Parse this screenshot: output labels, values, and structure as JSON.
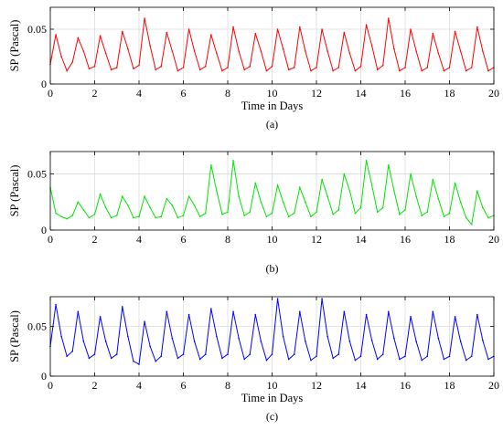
{
  "chart_data": [
    {
      "type": "line",
      "caption": "(a)",
      "xlabel": "Time in Days",
      "ylabel": "SP (Pascal)",
      "xlim": [
        0,
        20
      ],
      "ylim": [
        0,
        0.07
      ],
      "xticks": [
        0,
        2,
        4,
        6,
        8,
        10,
        12,
        14,
        16,
        18,
        20
      ],
      "xtick_labels": [
        "0",
        "2",
        "4",
        "6",
        "8",
        "10",
        "12",
        "14",
        "16",
        "18",
        "20"
      ],
      "yticks": [
        0,
        0.05
      ],
      "ytick_labels": [
        "0",
        "0.05"
      ],
      "grid": true,
      "color": "#ff0000",
      "series": [
        {
          "x": [
            0,
            0.25,
            0.5,
            0.75,
            1,
            1.25,
            1.5,
            1.75,
            2,
            2.25,
            2.5,
            2.75,
            3,
            3.25,
            3.5,
            3.75,
            4,
            4.25,
            4.5,
            4.75,
            5,
            5.25,
            5.5,
            5.75,
            6,
            6.25,
            6.5,
            6.75,
            7,
            7.25,
            7.5,
            7.75,
            8,
            8.25,
            8.5,
            8.75,
            9,
            9.25,
            9.5,
            9.75,
            10,
            10.25,
            10.5,
            10.75,
            11,
            11.25,
            11.5,
            11.75,
            12,
            12.25,
            12.5,
            12.75,
            13,
            13.25,
            13.5,
            13.75,
            14,
            14.25,
            14.5,
            14.75,
            15,
            15.25,
            15.5,
            15.75,
            16,
            16.25,
            16.5,
            16.75,
            17,
            17.25,
            17.5,
            17.75,
            18,
            18.25,
            18.5,
            18.75,
            19,
            19.25,
            19.5,
            19.75,
            20
          ],
          "values": [
            0.018,
            0.045,
            0.025,
            0.012,
            0.02,
            0.042,
            0.03,
            0.014,
            0.016,
            0.044,
            0.028,
            0.013,
            0.015,
            0.048,
            0.032,
            0.014,
            0.017,
            0.06,
            0.035,
            0.013,
            0.016,
            0.047,
            0.03,
            0.012,
            0.015,
            0.05,
            0.03,
            0.013,
            0.016,
            0.045,
            0.028,
            0.012,
            0.015,
            0.052,
            0.03,
            0.013,
            0.016,
            0.046,
            0.03,
            0.012,
            0.016,
            0.05,
            0.032,
            0.013,
            0.015,
            0.052,
            0.03,
            0.012,
            0.015,
            0.05,
            0.03,
            0.012,
            0.015,
            0.047,
            0.028,
            0.012,
            0.016,
            0.054,
            0.035,
            0.013,
            0.017,
            0.06,
            0.032,
            0.012,
            0.015,
            0.05,
            0.03,
            0.012,
            0.015,
            0.046,
            0.028,
            0.012,
            0.015,
            0.048,
            0.03,
            0.012,
            0.015,
            0.052,
            0.03,
            0.012,
            0.015
          ]
        }
      ]
    },
    {
      "type": "line",
      "caption": "(b)",
      "xlabel": "",
      "ylabel": "SP (Pascal)",
      "xlim": [
        0,
        20
      ],
      "ylim": [
        0,
        0.07
      ],
      "xticks": [
        0,
        2,
        4,
        6,
        8,
        10,
        12,
        14,
        16,
        18,
        20
      ],
      "xtick_labels": [
        "0",
        "2",
        "4",
        "6",
        "8",
        "10",
        "12",
        "14",
        "16",
        "18",
        "20"
      ],
      "yticks": [
        0,
        0.05
      ],
      "ytick_labels": [
        "0",
        "0.05"
      ],
      "grid": true,
      "color": "#00e600",
      "series": [
        {
          "x": [
            0,
            0.25,
            0.5,
            0.75,
            1,
            1.25,
            1.5,
            1.75,
            2,
            2.25,
            2.5,
            2.75,
            3,
            3.25,
            3.5,
            3.75,
            4,
            4.25,
            4.5,
            4.75,
            5,
            5.25,
            5.5,
            5.75,
            6,
            6.25,
            6.5,
            6.75,
            7,
            7.25,
            7.5,
            7.75,
            8,
            8.25,
            8.5,
            8.75,
            9,
            9.25,
            9.5,
            9.75,
            10,
            10.25,
            10.5,
            10.75,
            11,
            11.25,
            11.5,
            11.75,
            12,
            12.25,
            12.5,
            12.75,
            13,
            13.25,
            13.5,
            13.75,
            14,
            14.25,
            14.5,
            14.75,
            15,
            15.25,
            15.5,
            15.75,
            16,
            16.25,
            16.5,
            16.75,
            17,
            17.25,
            17.5,
            17.75,
            18,
            18.25,
            18.5,
            18.75,
            19,
            19.25,
            19.5,
            19.75,
            20
          ],
          "values": [
            0.038,
            0.015,
            0.012,
            0.01,
            0.013,
            0.025,
            0.018,
            0.011,
            0.014,
            0.032,
            0.02,
            0.011,
            0.013,
            0.03,
            0.022,
            0.011,
            0.012,
            0.03,
            0.02,
            0.011,
            0.012,
            0.028,
            0.022,
            0.011,
            0.013,
            0.03,
            0.022,
            0.012,
            0.015,
            0.058,
            0.035,
            0.014,
            0.016,
            0.062,
            0.03,
            0.013,
            0.016,
            0.042,
            0.025,
            0.012,
            0.015,
            0.04,
            0.025,
            0.012,
            0.015,
            0.038,
            0.025,
            0.012,
            0.016,
            0.045,
            0.03,
            0.014,
            0.018,
            0.05,
            0.035,
            0.015,
            0.02,
            0.062,
            0.04,
            0.016,
            0.02,
            0.058,
            0.035,
            0.014,
            0.018,
            0.05,
            0.03,
            0.013,
            0.016,
            0.045,
            0.028,
            0.012,
            0.015,
            0.042,
            0.025,
            0.011,
            0.005,
            0.035,
            0.02,
            0.011,
            0.013
          ]
        }
      ]
    },
    {
      "type": "line",
      "caption": "(c)",
      "xlabel": "Time in Days",
      "ylabel": "SP (Pascal)",
      "xlim": [
        0,
        20
      ],
      "ylim": [
        0,
        0.08
      ],
      "xticks": [
        0,
        2,
        4,
        6,
        8,
        10,
        12,
        14,
        16,
        18,
        20
      ],
      "xtick_labels": [
        "0",
        "2",
        "4",
        "6",
        "8",
        "10",
        "12",
        "14",
        "16",
        "18",
        "20"
      ],
      "yticks": [
        0,
        0.05
      ],
      "ytick_labels": [
        "0",
        "0.05"
      ],
      "grid": true,
      "color": "#0000ff",
      "series": [
        {
          "x": [
            0,
            0.25,
            0.5,
            0.75,
            1,
            1.25,
            1.5,
            1.75,
            2,
            2.25,
            2.5,
            2.75,
            3,
            3.25,
            3.5,
            3.75,
            4,
            4.25,
            4.5,
            4.75,
            5,
            5.25,
            5.5,
            5.75,
            6,
            6.25,
            6.5,
            6.75,
            7,
            7.25,
            7.5,
            7.75,
            8,
            8.25,
            8.5,
            8.75,
            9,
            9.25,
            9.5,
            9.75,
            10,
            10.25,
            10.5,
            10.75,
            11,
            11.25,
            11.5,
            11.75,
            12,
            12.25,
            12.5,
            12.75,
            13,
            13.25,
            13.5,
            13.75,
            14,
            14.25,
            14.5,
            14.75,
            15,
            15.25,
            15.5,
            15.75,
            16,
            16.25,
            16.5,
            16.75,
            17,
            17.25,
            17.5,
            17.75,
            18,
            18.25,
            18.5,
            18.75,
            19,
            19.25,
            19.5,
            19.75,
            20
          ],
          "values": [
            0.03,
            0.072,
            0.04,
            0.02,
            0.025,
            0.065,
            0.035,
            0.018,
            0.022,
            0.06,
            0.035,
            0.018,
            0.022,
            0.07,
            0.04,
            0.015,
            0.012,
            0.055,
            0.03,
            0.015,
            0.02,
            0.065,
            0.038,
            0.018,
            0.022,
            0.062,
            0.035,
            0.017,
            0.022,
            0.068,
            0.04,
            0.018,
            0.022,
            0.065,
            0.038,
            0.017,
            0.022,
            0.062,
            0.035,
            0.016,
            0.022,
            0.078,
            0.04,
            0.017,
            0.022,
            0.065,
            0.035,
            0.016,
            0.02,
            0.078,
            0.04,
            0.018,
            0.022,
            0.065,
            0.035,
            0.016,
            0.02,
            0.062,
            0.036,
            0.017,
            0.022,
            0.065,
            0.038,
            0.017,
            0.02,
            0.06,
            0.035,
            0.016,
            0.02,
            0.065,
            0.038,
            0.017,
            0.02,
            0.06,
            0.035,
            0.016,
            0.02,
            0.062,
            0.036,
            0.017,
            0.02
          ]
        }
      ]
    }
  ]
}
